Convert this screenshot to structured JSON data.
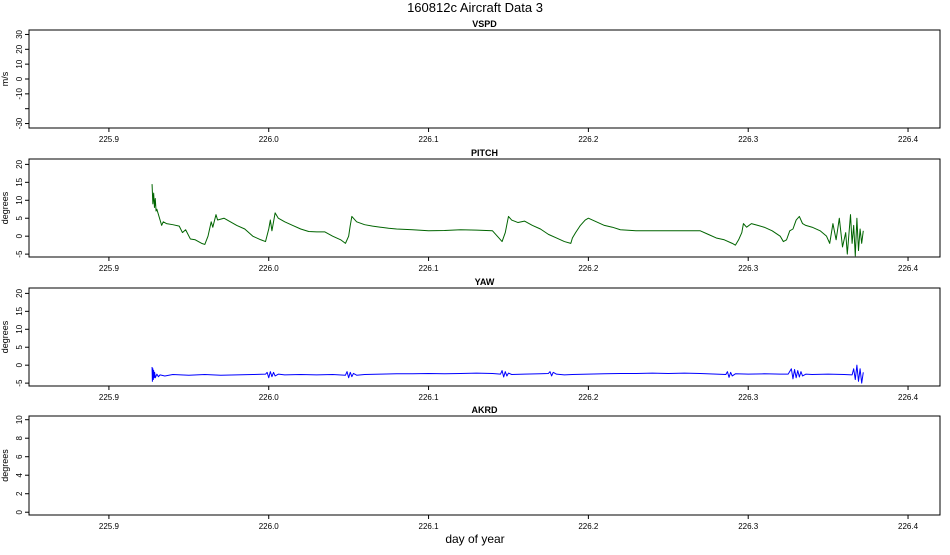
{
  "figure": {
    "title": "160812c   Aircraft Data 3",
    "xlabel": "day of year"
  },
  "chart_data": [
    {
      "type": "line",
      "title": "VSPD",
      "ylabel": "m/s",
      "xlim": [
        225.85,
        226.42
      ],
      "ylim": [
        -33,
        33
      ],
      "x_ticks": [
        225.9,
        226.0,
        226.1,
        226.2,
        226.3,
        226.4
      ],
      "x_tick_labels": [
        "225.9",
        "226.0",
        "226.1",
        "226.2",
        "226.3",
        "226.4"
      ],
      "y_ticks": [
        -30,
        -10,
        0,
        10,
        20,
        30
      ],
      "y_tick_labels": [
        "-30",
        "-10",
        "0",
        "10",
        "20",
        "30"
      ],
      "y_minor_ticks": [
        -20
      ],
      "grid": false,
      "series": []
    },
    {
      "type": "line",
      "title": "PITCH",
      "ylabel": "degrees",
      "xlim": [
        225.85,
        226.42
      ],
      "ylim": [
        -5.8,
        21.5
      ],
      "x_ticks": [
        225.9,
        226.0,
        226.1,
        226.2,
        226.3,
        226.4
      ],
      "x_tick_labels": [
        "225.9",
        "226.0",
        "226.1",
        "226.2",
        "226.3",
        "226.4"
      ],
      "y_ticks": [
        -5,
        0,
        5,
        10,
        15,
        20
      ],
      "y_tick_labels": [
        "-5",
        "0",
        "5",
        "10",
        "15",
        "20"
      ],
      "grid": false,
      "series": [
        {
          "color": "#006400",
          "points": [
            [
              225.927,
              14.5
            ],
            [
              225.9275,
              9.0
            ],
            [
              225.928,
              12.0
            ],
            [
              225.9285,
              8.0
            ],
            [
              225.929,
              10.5
            ],
            [
              225.9295,
              7.0
            ],
            [
              225.93,
              7.5
            ],
            [
              225.931,
              6.0
            ],
            [
              225.932,
              4.5
            ],
            [
              225.933,
              3.0
            ],
            [
              225.934,
              4.0
            ],
            [
              225.936,
              3.5
            ],
            [
              225.94,
              3.2
            ],
            [
              225.944,
              2.8
            ],
            [
              225.946,
              1.0
            ],
            [
              225.948,
              1.8
            ],
            [
              225.951,
              -0.8
            ],
            [
              225.954,
              -1.0
            ],
            [
              225.958,
              -2.0
            ],
            [
              225.96,
              -2.3
            ],
            [
              225.962,
              0.0
            ],
            [
              225.963,
              2.0
            ],
            [
              225.964,
              4.0
            ],
            [
              225.965,
              2.5
            ],
            [
              225.967,
              6.0
            ],
            [
              225.968,
              4.5
            ],
            [
              225.972,
              5.0
            ],
            [
              225.976,
              4.0
            ],
            [
              225.98,
              3.0
            ],
            [
              225.985,
              2.0
            ],
            [
              225.99,
              0.0
            ],
            [
              225.995,
              -1.0
            ],
            [
              225.998,
              -1.5
            ],
            [
              226.0,
              2.0
            ],
            [
              226.001,
              4.5
            ],
            [
              226.002,
              1.5
            ],
            [
              226.004,
              6.5
            ],
            [
              226.006,
              5.0
            ],
            [
              226.01,
              4.0
            ],
            [
              226.015,
              3.0
            ],
            [
              226.02,
              2.0
            ],
            [
              226.025,
              1.3
            ],
            [
              226.03,
              1.2
            ],
            [
              226.035,
              1.2
            ],
            [
              226.04,
              0.0
            ],
            [
              226.045,
              -1.0
            ],
            [
              226.048,
              -2.0
            ],
            [
              226.05,
              0.0
            ],
            [
              226.051,
              3.0
            ],
            [
              226.052,
              5.5
            ],
            [
              226.055,
              4.0
            ],
            [
              226.06,
              3.2
            ],
            [
              226.065,
              2.8
            ],
            [
              226.07,
              2.5
            ],
            [
              226.075,
              2.2
            ],
            [
              226.08,
              2.0
            ],
            [
              226.09,
              1.8
            ],
            [
              226.1,
              1.5
            ],
            [
              226.11,
              1.6
            ],
            [
              226.12,
              1.8
            ],
            [
              226.13,
              1.7
            ],
            [
              226.14,
              1.5
            ],
            [
              226.144,
              -0.5
            ],
            [
              226.146,
              -1.5
            ],
            [
              226.148,
              1.0
            ],
            [
              226.15,
              5.5
            ],
            [
              226.152,
              4.5
            ],
            [
              226.156,
              3.8
            ],
            [
              226.16,
              4.2
            ],
            [
              226.165,
              3.0
            ],
            [
              226.17,
              2.0
            ],
            [
              226.175,
              0.5
            ],
            [
              226.18,
              -0.5
            ],
            [
              226.185,
              -1.5
            ],
            [
              226.189,
              -2.0
            ],
            [
              226.19,
              -0.5
            ],
            [
              226.192,
              1.0
            ],
            [
              226.195,
              3.0
            ],
            [
              226.198,
              4.5
            ],
            [
              226.2,
              5.0
            ],
            [
              226.205,
              4.0
            ],
            [
              226.21,
              3.0
            ],
            [
              226.215,
              2.5
            ],
            [
              226.22,
              1.8
            ],
            [
              226.23,
              1.5
            ],
            [
              226.24,
              1.5
            ],
            [
              226.25,
              1.5
            ],
            [
              226.26,
              1.5
            ],
            [
              226.27,
              1.5
            ],
            [
              226.275,
              0.5
            ],
            [
              226.28,
              -0.5
            ],
            [
              226.285,
              -1.0
            ],
            [
              226.29,
              -2.0
            ],
            [
              226.292,
              -2.5
            ],
            [
              226.294,
              -1.0
            ],
            [
              226.296,
              1.0
            ],
            [
              226.297,
              3.5
            ],
            [
              226.299,
              2.5
            ],
            [
              226.302,
              3.5
            ],
            [
              226.306,
              3.0
            ],
            [
              226.31,
              2.5
            ],
            [
              226.315,
              1.5
            ],
            [
              226.32,
              0.0
            ],
            [
              226.322,
              -1.5
            ],
            [
              226.324,
              -1.0
            ],
            [
              226.326,
              1.5
            ],
            [
              226.328,
              2.0
            ],
            [
              226.33,
              4.5
            ],
            [
              226.332,
              5.5
            ],
            [
              226.334,
              3.5
            ],
            [
              226.336,
              3.0
            ],
            [
              226.34,
              2.5
            ],
            [
              226.345,
              1.5
            ],
            [
              226.349,
              0.0
            ],
            [
              226.351,
              -2.0
            ],
            [
              226.353,
              3.5
            ],
            [
              226.355,
              -1.0
            ],
            [
              226.357,
              5.0
            ],
            [
              226.359,
              -3.0
            ],
            [
              226.361,
              1.0
            ],
            [
              226.362,
              -5.0
            ],
            [
              226.364,
              6.0
            ],
            [
              226.365,
              -2.0
            ],
            [
              226.366,
              3.0
            ],
            [
              226.367,
              -5.5
            ],
            [
              226.368,
              5.0
            ],
            [
              226.369,
              -4.0
            ],
            [
              226.37,
              2.0
            ],
            [
              226.371,
              -2.0
            ],
            [
              226.372,
              1.5
            ]
          ]
        }
      ]
    },
    {
      "type": "line",
      "title": "YAW",
      "ylabel": "degrees",
      "xlim": [
        225.85,
        226.42
      ],
      "ylim": [
        -5.8,
        21.5
      ],
      "x_ticks": [
        225.9,
        226.0,
        226.1,
        226.2,
        226.3,
        226.4
      ],
      "x_tick_labels": [
        "225.9",
        "226.0",
        "226.1",
        "226.2",
        "226.3",
        "226.4"
      ],
      "y_ticks": [
        -5,
        0,
        5,
        10,
        15,
        20
      ],
      "y_tick_labels": [
        "-5",
        "0",
        "5",
        "10",
        "15",
        "20"
      ],
      "grid": false,
      "series": [
        {
          "color": "#0000ff",
          "points": [
            [
              225.927,
              -0.5
            ],
            [
              225.9272,
              -4.5
            ],
            [
              225.9275,
              -1.0
            ],
            [
              225.9278,
              -4.0
            ],
            [
              225.928,
              -1.5
            ],
            [
              225.9283,
              -3.5
            ],
            [
              225.9286,
              -2.0
            ],
            [
              225.929,
              -3.5
            ],
            [
              225.93,
              -2.5
            ],
            [
              225.931,
              -3.2
            ],
            [
              225.932,
              -2.7
            ],
            [
              225.935,
              -3.0
            ],
            [
              225.94,
              -2.6
            ],
            [
              225.95,
              -2.8
            ],
            [
              225.96,
              -2.6
            ],
            [
              225.97,
              -2.8
            ],
            [
              225.98,
              -2.7
            ],
            [
              225.99,
              -2.6
            ],
            [
              225.998,
              -2.5
            ],
            [
              225.999,
              -2.0
            ],
            [
              226.0,
              -3.5
            ],
            [
              226.001,
              -1.8
            ],
            [
              226.002,
              -3.2
            ],
            [
              226.003,
              -2.0
            ],
            [
              226.004,
              -3.0
            ],
            [
              226.006,
              -2.5
            ],
            [
              226.01,
              -2.7
            ],
            [
              226.02,
              -2.6
            ],
            [
              226.03,
              -2.7
            ],
            [
              226.04,
              -2.6
            ],
            [
              226.048,
              -2.8
            ],
            [
              226.049,
              -1.8
            ],
            [
              226.05,
              -3.5
            ],
            [
              226.051,
              -2.0
            ],
            [
              226.052,
              -3.2
            ],
            [
              226.053,
              -2.3
            ],
            [
              226.055,
              -2.8
            ],
            [
              226.06,
              -2.6
            ],
            [
              226.07,
              -2.5
            ],
            [
              226.08,
              -2.4
            ],
            [
              226.09,
              -2.4
            ],
            [
              226.1,
              -2.3
            ],
            [
              226.11,
              -2.4
            ],
            [
              226.12,
              -2.3
            ],
            [
              226.13,
              -2.2
            ],
            [
              226.14,
              -2.3
            ],
            [
              226.145,
              -2.5
            ],
            [
              226.146,
              -1.5
            ],
            [
              226.147,
              -3.3
            ],
            [
              226.148,
              -1.8
            ],
            [
              226.149,
              -3.0
            ],
            [
              226.15,
              -2.2
            ],
            [
              226.152,
              -2.6
            ],
            [
              226.16,
              -2.5
            ],
            [
              226.17,
              -2.4
            ],
            [
              226.175,
              -2.3
            ],
            [
              226.176,
              -1.8
            ],
            [
              226.177,
              -3.0
            ],
            [
              226.178,
              -2.0
            ],
            [
              226.18,
              -2.5
            ],
            [
              226.185,
              -2.7
            ],
            [
              226.19,
              -2.6
            ],
            [
              226.2,
              -2.5
            ],
            [
              226.21,
              -2.4
            ],
            [
              226.22,
              -2.3
            ],
            [
              226.23,
              -2.3
            ],
            [
              226.24,
              -2.2
            ],
            [
              226.25,
              -2.3
            ],
            [
              226.26,
              -2.2
            ],
            [
              226.27,
              -2.3
            ],
            [
              226.28,
              -2.5
            ],
            [
              226.286,
              -2.6
            ],
            [
              226.287,
              -1.8
            ],
            [
              226.288,
              -3.4
            ],
            [
              226.289,
              -2.0
            ],
            [
              226.29,
              -3.0
            ],
            [
              226.292,
              -2.4
            ],
            [
              226.3,
              -2.5
            ],
            [
              226.31,
              -2.4
            ],
            [
              226.32,
              -2.5
            ],
            [
              226.325,
              -2.5
            ],
            [
              226.327,
              -1.0
            ],
            [
              226.328,
              -3.8
            ],
            [
              226.329,
              -1.2
            ],
            [
              226.33,
              -3.5
            ],
            [
              226.331,
              -1.5
            ],
            [
              226.332,
              -3.3
            ],
            [
              226.333,
              -1.8
            ],
            [
              226.334,
              -3.0
            ],
            [
              226.336,
              -2.5
            ],
            [
              226.34,
              -2.6
            ],
            [
              226.35,
              -2.5
            ],
            [
              226.36,
              -2.6
            ],
            [
              226.365,
              -2.7
            ],
            [
              226.366,
              -1.0
            ],
            [
              226.367,
              -4.0
            ],
            [
              226.368,
              0.0
            ],
            [
              226.369,
              -4.5
            ],
            [
              226.37,
              -1.0
            ],
            [
              226.371,
              -5.0
            ],
            [
              226.372,
              -2.0
            ]
          ]
        }
      ]
    },
    {
      "type": "line",
      "title": "AKRD",
      "ylabel": "degrees",
      "xlim": [
        225.85,
        226.42
      ],
      "ylim": [
        -0.3,
        10.4
      ],
      "x_ticks": [
        225.9,
        226.0,
        226.1,
        226.2,
        226.3,
        226.4
      ],
      "x_tick_labels": [
        "225.9",
        "226.0",
        "226.1",
        "226.2",
        "226.3",
        "226.4"
      ],
      "y_ticks": [
        0,
        2,
        4,
        6,
        8,
        10
      ],
      "y_tick_labels": [
        "0",
        "2",
        "4",
        "6",
        "8",
        "10"
      ],
      "grid": false,
      "series": []
    }
  ]
}
